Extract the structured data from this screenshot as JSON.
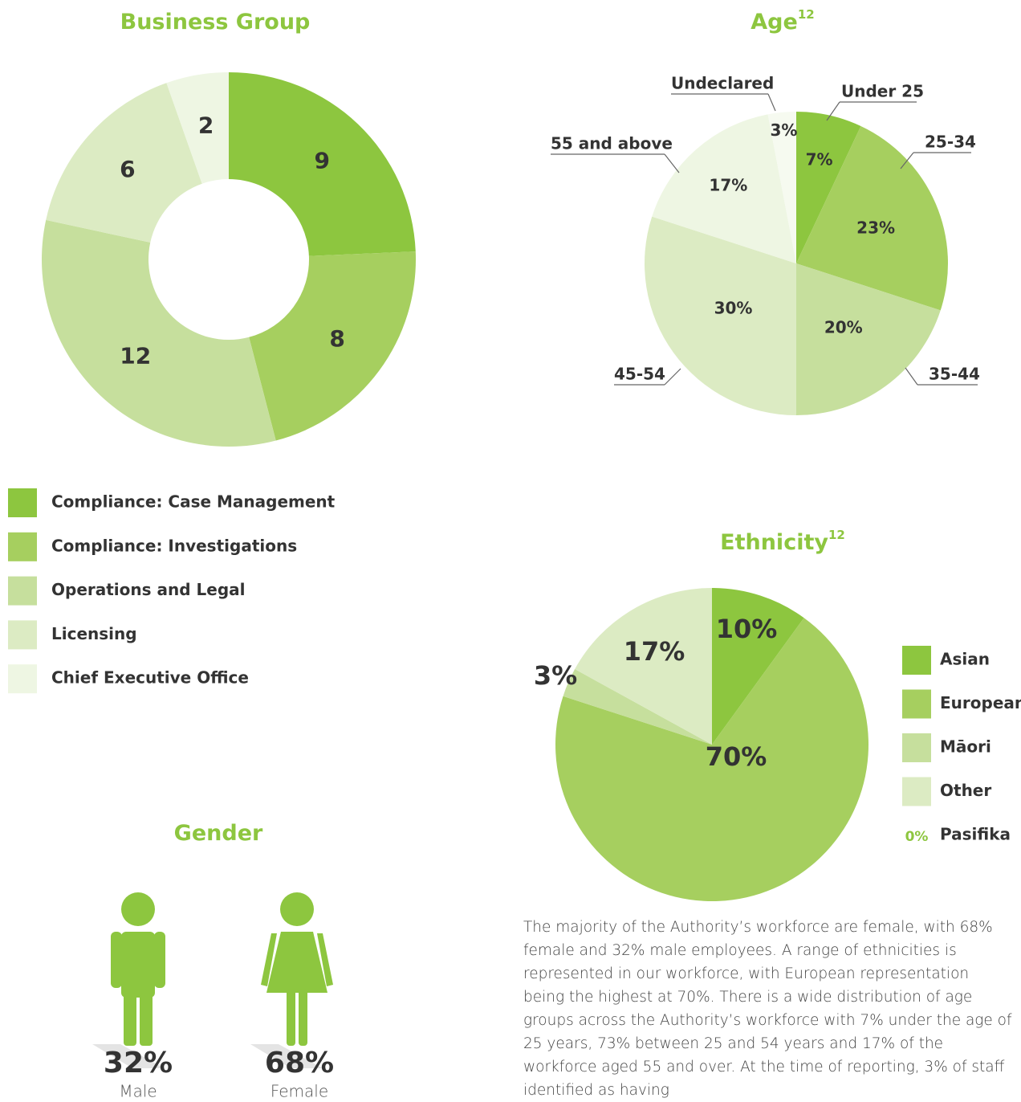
{
  "chart_data": [
    {
      "type": "donut",
      "title": "Business Group",
      "categories": [
        "Compliance: Case Management",
        "Compliance: Investigations",
        "Operations and Legal",
        "Licensing",
        "Chief Executive Office"
      ],
      "values": [
        9,
        8,
        12,
        6,
        2
      ],
      "colors": [
        "#8dc63f",
        "#a6cf5f",
        "#c6df9d",
        "#dcebc3",
        "#eef6e3"
      ]
    },
    {
      "type": "pie",
      "title": "Age",
      "title_sup": "12",
      "categories": [
        "Under 25",
        "25-34",
        "35-44",
        "45-54",
        "55 and above",
        "Undeclared"
      ],
      "values": [
        7,
        23,
        20,
        30,
        17,
        3
      ],
      "value_labels": [
        "7%",
        "23%",
        "20%",
        "30%",
        "17%",
        "3%"
      ],
      "colors": [
        "#8dc63f",
        "#a6cf5f",
        "#c6df9d",
        "#dcebc3",
        "#eef6e3",
        "#f6faf0"
      ]
    },
    {
      "type": "pie",
      "title": "Ethnicity",
      "title_sup": "12",
      "categories": [
        "Asian",
        "European",
        "Māori",
        "Other",
        "Pasifika"
      ],
      "values": [
        10,
        70,
        3,
        17,
        0
      ],
      "value_labels": [
        "10%",
        "70%",
        "3%",
        "17%",
        "0%"
      ],
      "colors": [
        "#8dc63f",
        "#a6cf5f",
        "#c6df9d",
        "#dcebc3",
        "#8dc63f"
      ]
    },
    {
      "type": "pictogram",
      "title": "Gender",
      "categories": [
        "Male",
        "Female"
      ],
      "values": [
        32,
        68
      ],
      "value_labels": [
        "32%",
        "68%"
      ]
    }
  ],
  "paragraph": "The majority of the Authority’s workforce are female, with 68% female and 32% male employees.  A range of ethnicities is represented in our workforce, with European representation being the highest at 70%.  There is a wide distribution of age groups across the Authority’s workforce with 7% under the age of 25 years, 73% between 25 and 54 years and 17% of the workforce aged 55 and over.  At the time of reporting, 3% of staff identified as having"
}
